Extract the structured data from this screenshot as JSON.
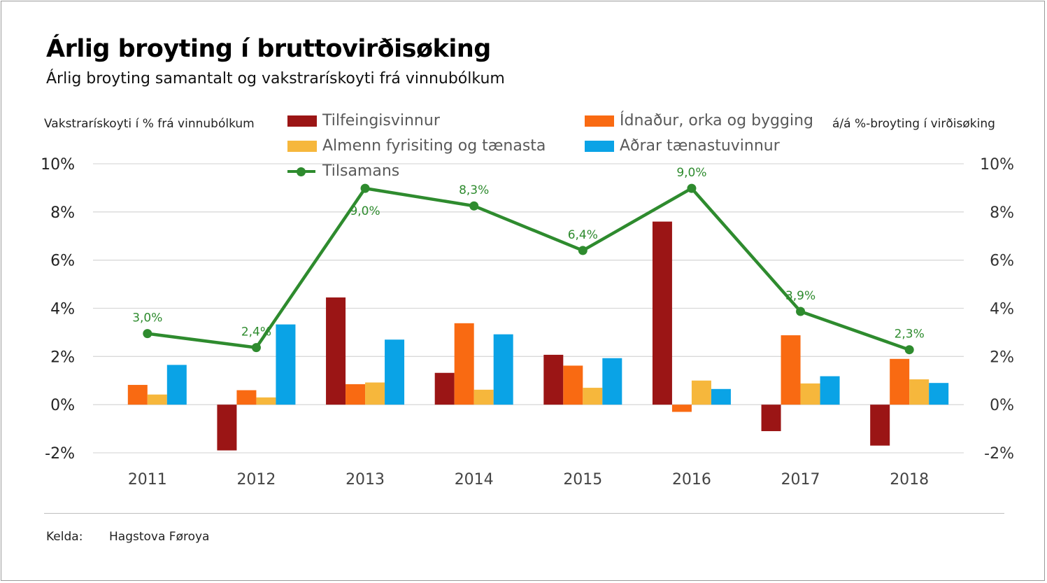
{
  "title": "Árlig broyting í bruttovirðisøking",
  "subtitle": "Árlig broyting samantalt og vakstrarískoyti frá vinnubólkum",
  "source": {
    "label": "Kelda:",
    "value": "Hagstova Føroya"
  },
  "colors": {
    "Tilfeingisvinnur": "#9b1515",
    "Ídnaður, orka og bygging": "#f96a12",
    "Almenn fyrisiting og tænasta": "#f6b73c",
    "Aðrar tænastuvinnur": "#0aa3e6",
    "Tilsamans": "#2e8b2e"
  },
  "chart_data": {
    "type": "bar",
    "ylabel": "Vakstrarískoyti í % frá vinnubólkum",
    "y2label": "á/á %-broyting í virðisøking",
    "ylim": [
      -2,
      10
    ],
    "y2lim": [
      -2,
      10
    ],
    "yticks": [
      "10%",
      "8%",
      "6%",
      "4%",
      "2%",
      "0%",
      "-2%"
    ],
    "categories": [
      "2011",
      "2012",
      "2013",
      "2014",
      "2015",
      "2016",
      "2017",
      "2018"
    ],
    "series": [
      {
        "name": "Tilfeingisvinnur",
        "type": "bar",
        "values": [
          0,
          -1.9,
          4.45,
          1.32,
          2.07,
          7.6,
          -1.1,
          -1.7
        ]
      },
      {
        "name": "Ídnaður, orka og bygging",
        "type": "bar",
        "values": [
          0.82,
          0.6,
          0.85,
          3.38,
          1.62,
          -0.3,
          2.88,
          1.9
        ]
      },
      {
        "name": "Almenn fyrisiting og tænasta",
        "type": "bar",
        "values": [
          0.42,
          0.3,
          0.92,
          0.62,
          0.7,
          1.0,
          0.88,
          1.05
        ]
      },
      {
        "name": "Aðrar tænastuvinnur",
        "type": "bar",
        "values": [
          1.65,
          3.33,
          2.7,
          2.92,
          1.93,
          0.65,
          1.18,
          0.9
        ]
      },
      {
        "name": "Tilsamans",
        "type": "line",
        "axis": "right",
        "values": [
          2.95,
          2.37,
          8.98,
          8.25,
          6.4,
          8.98,
          3.87,
          2.28
        ],
        "labels": [
          "3,0%",
          "2,4%",
          "9,0%",
          "8,3%",
          "6,4%",
          "9,0%",
          "3,9%",
          "2,3%"
        ]
      }
    ],
    "legend": [
      "Tilfeingisvinnur",
      "Ídnaður, orka og bygging",
      "Almenn fyrisiting og tænasta",
      "Aðrar tænastuvinnur",
      "Tilsamans"
    ],
    "legend_placement": "top",
    "grid": true
  }
}
